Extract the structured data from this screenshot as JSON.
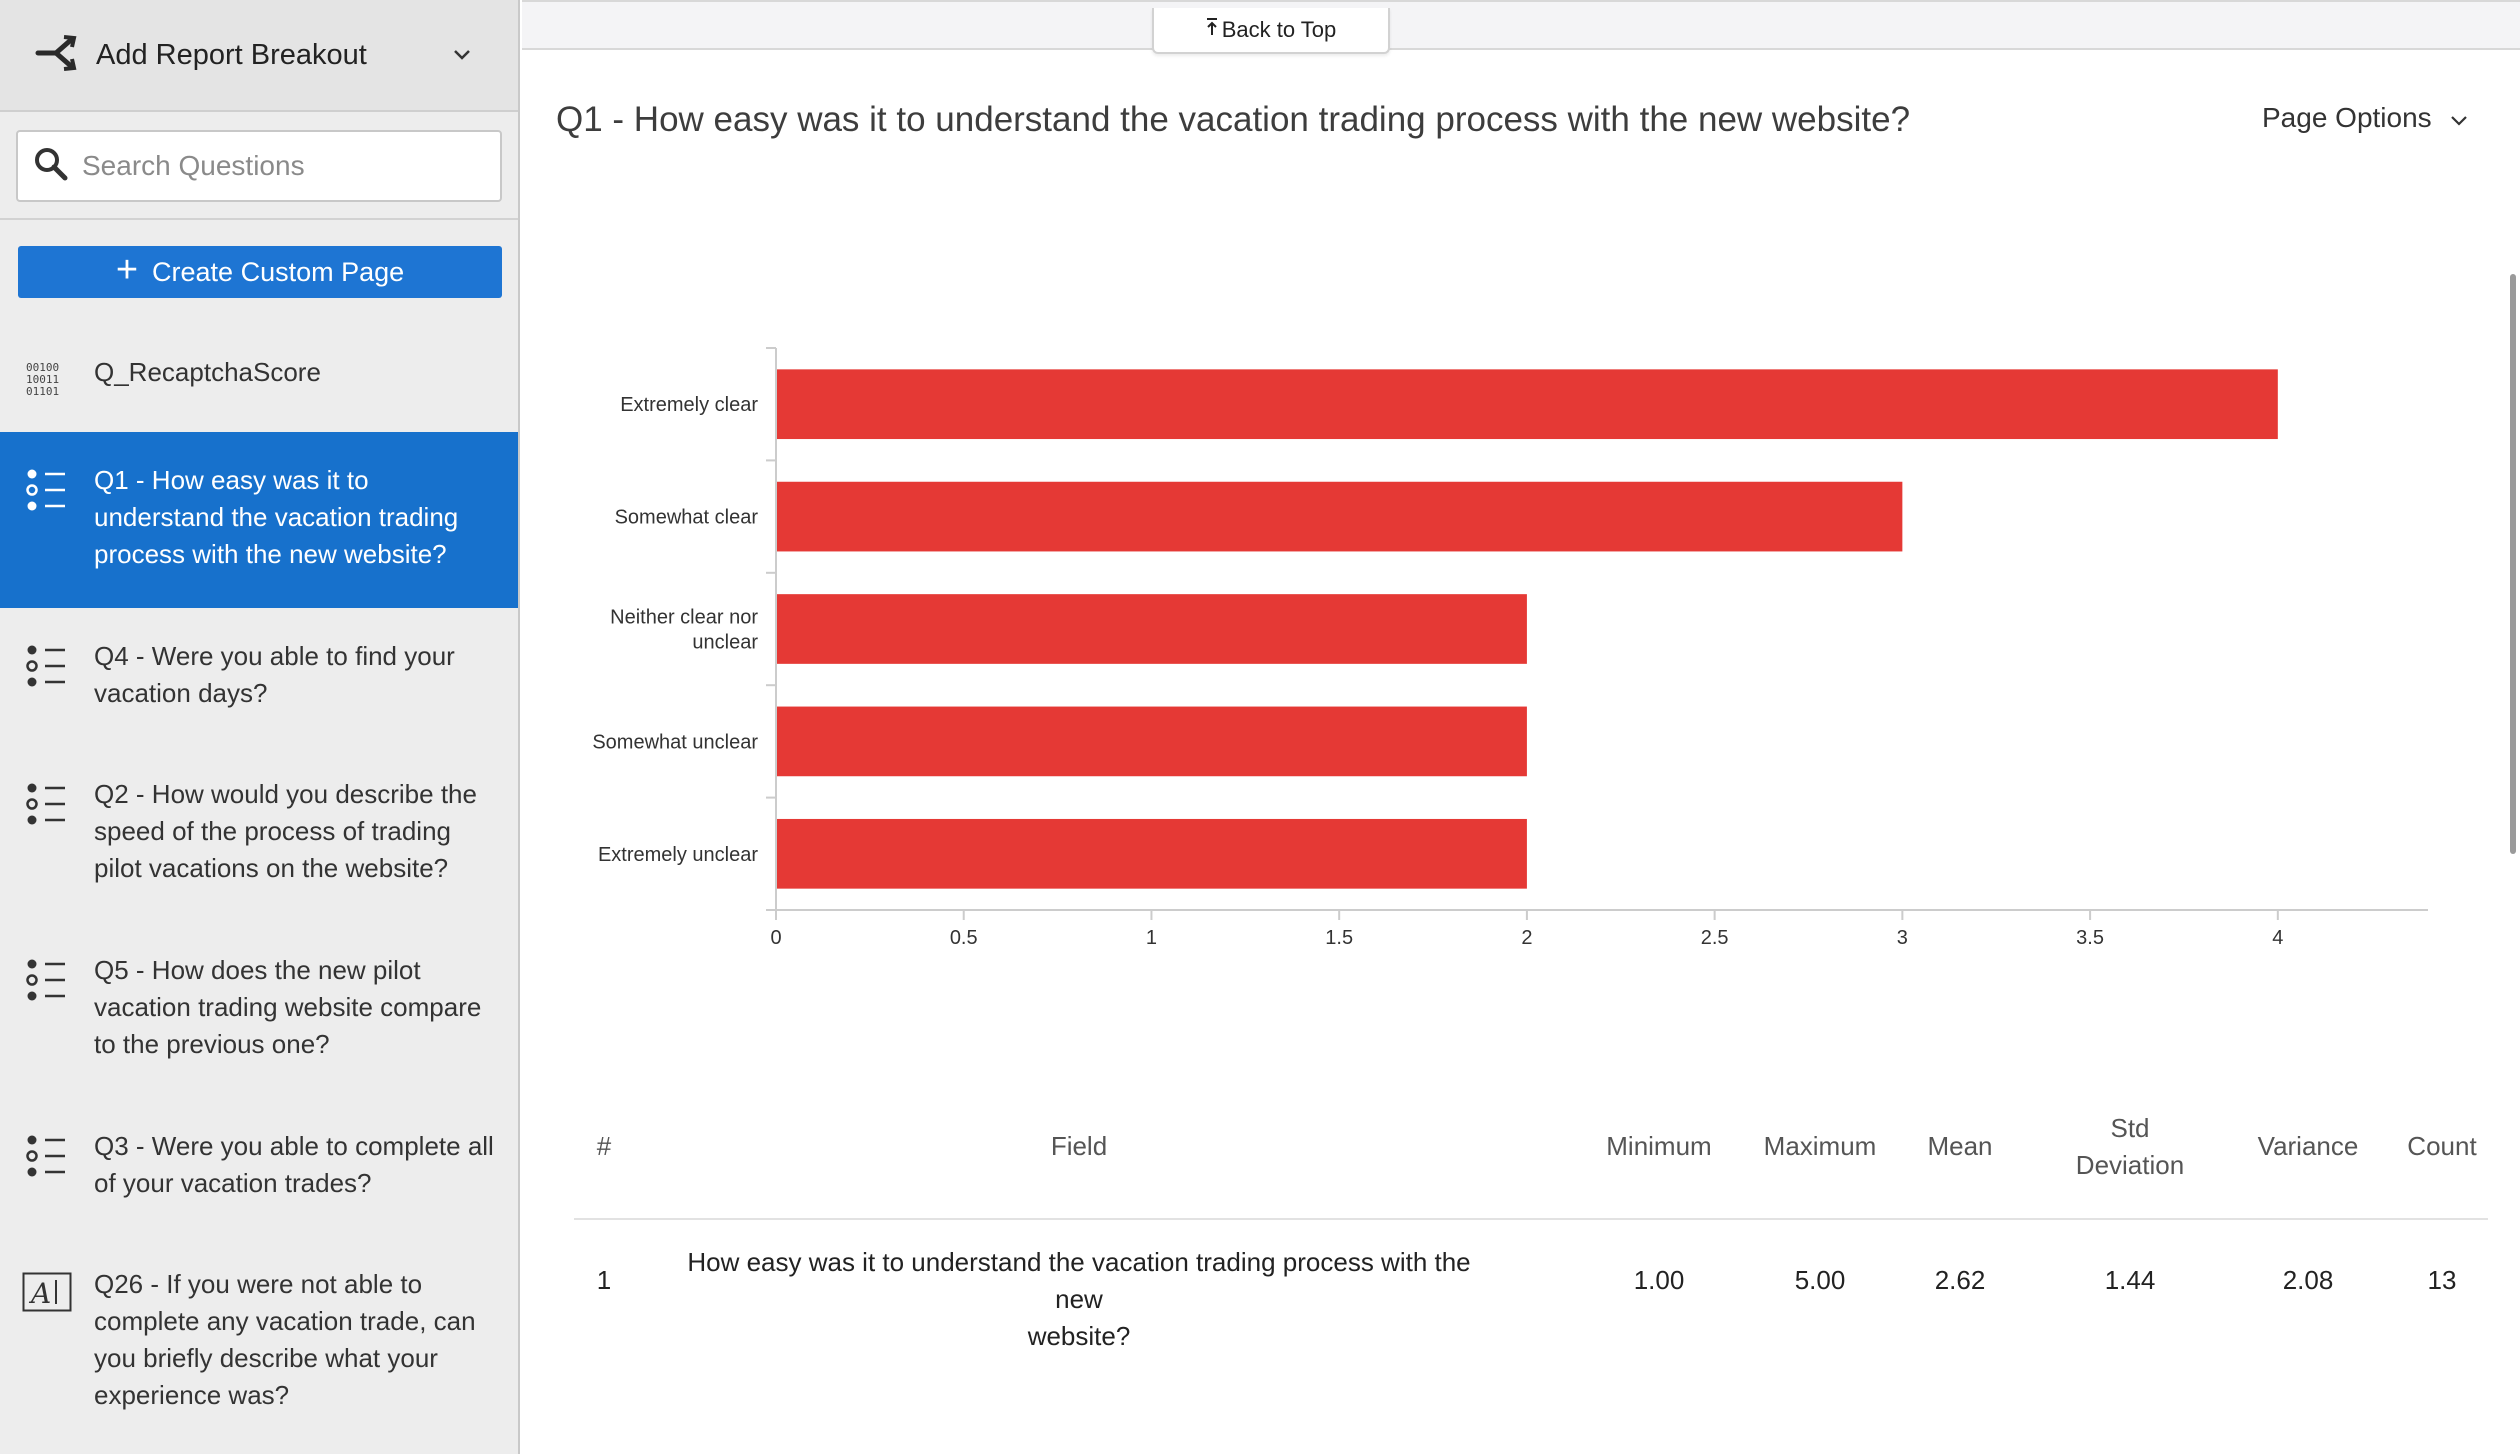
{
  "sidebar": {
    "breakout_label": "Add Report Breakout",
    "search_placeholder": "Search Questions",
    "create_label": "Create Custom Page",
    "items": [
      {
        "icon": "binary-icon",
        "label": "Q_RecaptchaScore",
        "active": false
      },
      {
        "icon": "multiple-choice-icon",
        "label": "Q1 - How easy was it to understand the vacation trading process with the new website?",
        "active": true
      },
      {
        "icon": "multiple-choice-icon",
        "label": "Q4 - Were you able to find your vacation days?",
        "active": false
      },
      {
        "icon": "multiple-choice-icon",
        "label": "Q2 - How would you describe the speed of the process of trading pilot vacations on the website?",
        "active": false
      },
      {
        "icon": "multiple-choice-icon",
        "label": "Q5 - How does the new pilot vacation trading website compare to the previous one?",
        "active": false
      },
      {
        "icon": "multiple-choice-icon",
        "label": "Q3 - Were you able to complete all of your vacation trades?",
        "active": false
      },
      {
        "icon": "text-entry-icon",
        "label": "Q26 - If you were not able to complete any vacation trade, can you briefly describe what your experience was?",
        "active": false
      }
    ]
  },
  "topbar": {
    "back_to_top": "Back to Top"
  },
  "page": {
    "title": "Q1 - How easy was it to understand the vacation trading process with the new website?",
    "options_label": "Page Options"
  },
  "colors": {
    "bar": "#e53935",
    "accent": "#1771cc",
    "button": "#1e75d3"
  },
  "chart_data": {
    "type": "bar",
    "orientation": "horizontal",
    "title": "",
    "xlabel": "",
    "ylabel": "",
    "categories": [
      "Extremely clear",
      "Somewhat clear",
      "Neither clear nor unclear",
      "Somewhat unclear",
      "Extremely unclear"
    ],
    "category_lines": [
      [
        "Extremely clear"
      ],
      [
        "Somewhat clear"
      ],
      [
        "Neither clear nor",
        "unclear"
      ],
      [
        "Somewhat unclear"
      ],
      [
        "Extremely unclear"
      ]
    ],
    "values": [
      4,
      3,
      2,
      2,
      2
    ],
    "xlim": [
      0,
      4.4
    ],
    "xticks": [
      "0",
      "0.5",
      "1",
      "1.5",
      "2",
      "2.5",
      "3",
      "3.5",
      "4"
    ],
    "grid": false,
    "legend": "none"
  },
  "table": {
    "headers": {
      "num": "#",
      "field": "Field",
      "min": "Minimum",
      "max": "Maximum",
      "mean": "Mean",
      "std_1": "Std",
      "std_2": "Deviation",
      "variance": "Variance",
      "count": "Count"
    },
    "row": {
      "num": "1",
      "field_1": "How easy was it to understand the vacation trading process with the new",
      "field_2": "website?",
      "min": "1.00",
      "max": "5.00",
      "mean": "2.62",
      "std": "1.44",
      "variance": "2.08",
      "count": "13"
    }
  }
}
